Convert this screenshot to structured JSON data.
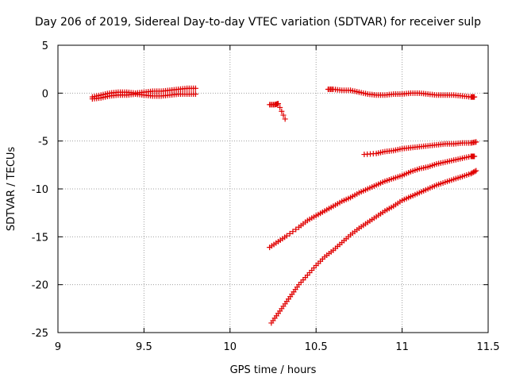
{
  "chart_data": {
    "type": "scatter",
    "title": "Day 206 of 2019, Sidereal Day-to-day VTEC variation (SDTVAR) for receiver sulp",
    "xlabel": "GPS time / hours",
    "ylabel": "SDTVAR / TECUs",
    "xlim": [
      9,
      11.5
    ],
    "ylim": [
      -25,
      5
    ],
    "xticks": [
      "9",
      "9.5",
      "10",
      "10.5",
      "11",
      "11.5"
    ],
    "yticks": [
      "5",
      "0",
      "-5",
      "-10",
      "-15",
      "-20",
      "-25"
    ],
    "grid": true,
    "marker": "+",
    "color": "#e00000",
    "series": [
      {
        "name": "segment-a-upper",
        "x": [
          9.2,
          9.25,
          9.3,
          9.35,
          9.4,
          9.45,
          9.5,
          9.55,
          9.6,
          9.65,
          9.7,
          9.75,
          9.8
        ],
        "y": [
          -0.4,
          -0.2,
          0.0,
          0.1,
          0.1,
          0.0,
          0.1,
          0.2,
          0.2,
          0.3,
          0.4,
          0.5,
          0.5
        ]
      },
      {
        "name": "segment-a-lower",
        "x": [
          9.2,
          9.25,
          9.3,
          9.35,
          9.4,
          9.45,
          9.5,
          9.55,
          9.6,
          9.65,
          9.7,
          9.75,
          9.8
        ],
        "y": [
          -0.6,
          -0.5,
          -0.3,
          -0.2,
          -0.2,
          -0.1,
          -0.2,
          -0.3,
          -0.3,
          -0.2,
          -0.1,
          -0.1,
          -0.1
        ]
      },
      {
        "name": "segment-b",
        "x": [
          10.23,
          10.26,
          10.28,
          10.32
        ],
        "y": [
          -1.2,
          -1.2,
          -1.1,
          -2.7
        ]
      },
      {
        "name": "segment-c",
        "x": [
          10.57,
          10.6,
          10.65,
          10.7,
          10.75,
          10.8,
          10.85,
          10.9,
          10.95,
          11.0,
          11.05,
          11.1,
          11.15,
          11.2,
          11.25,
          11.3,
          11.35,
          11.4,
          11.42
        ],
        "y": [
          0.4,
          0.4,
          0.3,
          0.3,
          0.1,
          -0.1,
          -0.2,
          -0.2,
          -0.1,
          -0.1,
          0.0,
          0.0,
          -0.1,
          -0.2,
          -0.2,
          -0.2,
          -0.3,
          -0.4,
          -0.4
        ]
      },
      {
        "name": "segment-d",
        "x": [
          10.78,
          10.85,
          10.9,
          10.95,
          11.0,
          11.05,
          11.1,
          11.15,
          11.2,
          11.25,
          11.3,
          11.35,
          11.4,
          11.43
        ],
        "y": [
          -6.4,
          -6.3,
          -6.1,
          -6.0,
          -5.8,
          -5.7,
          -5.6,
          -5.5,
          -5.4,
          -5.3,
          -5.3,
          -5.2,
          -5.2,
          -5.1
        ]
      },
      {
        "name": "segment-e",
        "x": [
          10.23,
          10.28,
          10.33,
          10.4,
          10.45,
          10.5,
          10.55,
          10.6,
          10.65,
          10.7,
          10.75,
          10.8,
          10.85,
          10.9,
          10.95,
          11.0,
          11.05,
          11.1,
          11.15,
          11.2,
          11.25,
          11.3,
          11.35,
          11.4,
          11.42
        ],
        "y": [
          -16.1,
          -15.5,
          -14.9,
          -14.0,
          -13.3,
          -12.8,
          -12.3,
          -11.8,
          -11.3,
          -10.9,
          -10.4,
          -10.0,
          -9.6,
          -9.2,
          -8.9,
          -8.6,
          -8.2,
          -7.9,
          -7.7,
          -7.4,
          -7.2,
          -7.0,
          -6.8,
          -6.6,
          -6.6
        ]
      },
      {
        "name": "segment-f",
        "x": [
          10.24,
          10.28,
          10.32,
          10.36,
          10.4,
          10.45,
          10.5,
          10.55,
          10.6,
          10.65,
          10.7,
          10.75,
          10.8,
          10.85,
          10.9,
          10.95,
          11.0,
          11.05,
          11.1,
          11.15,
          11.2,
          11.25,
          11.3,
          11.35,
          11.4,
          11.43
        ],
        "y": [
          -24.0,
          -23.0,
          -22.0,
          -21.0,
          -20.0,
          -19.0,
          -18.0,
          -17.1,
          -16.4,
          -15.6,
          -14.8,
          -14.1,
          -13.5,
          -12.9,
          -12.3,
          -11.8,
          -11.2,
          -10.8,
          -10.4,
          -10.0,
          -9.6,
          -9.3,
          -9.0,
          -8.7,
          -8.4,
          -8.1
        ]
      }
    ]
  }
}
